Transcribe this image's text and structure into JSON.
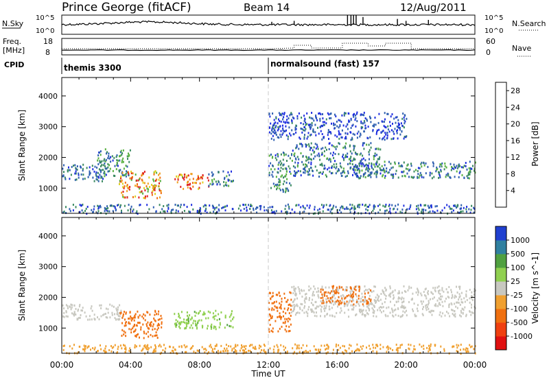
{
  "header": {
    "station": "Prince George (fitACF)",
    "beam": "Beam 14",
    "date": "12/Aug/2011"
  },
  "sky_panel": {
    "left_label": "N.Sky",
    "left_ticks": [
      "10^5",
      "10^0"
    ],
    "right_ticks": [
      "10^5",
      "10^0"
    ],
    "right_label": "N.Search"
  },
  "freq_panel": {
    "left_label_1": "Freq.",
    "left_label_2": "[MHz]",
    "left_ticks": [
      "18",
      "8"
    ],
    "right_ticks": [
      "60",
      "0"
    ],
    "right_label": "Nave"
  },
  "cpid": {
    "label": "CPID",
    "programs": [
      "themis 3300",
      "normalsound (fast) 157"
    ]
  },
  "colors": {
    "power": [
      "#1e2ee0",
      "#2e5fb0",
      "#3a8a60",
      "#58b040",
      "#e0d020",
      "#f0a020",
      "#f07010",
      "#e02020"
    ],
    "velocity": [
      "#e01010",
      "#f04010",
      "#f07010",
      "#f0a030",
      "#c8c8c0",
      "#90d050",
      "#50a040",
      "#3080a0",
      "#2040d0"
    ],
    "grid_dash": "#c8c8c8"
  },
  "chart_data": [
    {
      "type": "heatmap",
      "name": "power",
      "ylabel": "Slant Range [km]",
      "y_ticks": [
        "1000",
        "2000",
        "3000",
        "4000"
      ],
      "ylim": [
        180,
        4600
      ],
      "colorbar_label": "Power [dB]",
      "colorbar_ticks": [
        "4",
        "8",
        "12",
        "16",
        "20",
        "24",
        "28"
      ],
      "colorbar_range": [
        0,
        30
      ],
      "regions": [
        {
          "t": [
            0.0,
            2.5
          ],
          "r": [
            1250,
            1800
          ],
          "v": 6
        },
        {
          "t": [
            2.0,
            4.0
          ],
          "r": [
            1400,
            2300
          ],
          "v": 9
        },
        {
          "t": [
            3.3,
            5.8
          ],
          "r": [
            700,
            1600
          ],
          "v": 22
        },
        {
          "t": [
            6.5,
            8.5
          ],
          "r": [
            1000,
            1500
          ],
          "v": 24
        },
        {
          "t": [
            8.5,
            10.0
          ],
          "r": [
            1100,
            1600
          ],
          "v": 8
        },
        {
          "t": [
            0.0,
            24.0
          ],
          "r": [
            200,
            500
          ],
          "v": 6
        },
        {
          "t": [
            12.0,
            13.3
          ],
          "r": [
            900,
            2200
          ],
          "v": 9
        },
        {
          "t": [
            13.3,
            18.5
          ],
          "r": [
            1400,
            2500
          ],
          "v": 7
        },
        {
          "t": [
            17.0,
            24.0
          ],
          "r": [
            1350,
            1900
          ],
          "v": 8
        },
        {
          "t": [
            12.0,
            20.0
          ],
          "r": [
            2600,
            3500
          ],
          "v": 4
        }
      ]
    },
    {
      "type": "heatmap",
      "name": "velocity",
      "ylabel": "Slant Range [km]",
      "y_ticks": [
        "1000",
        "2000",
        "3000",
        "4000"
      ],
      "ylim": [
        180,
        4600
      ],
      "colorbar_label": "Velocity [m s^-1]",
      "colorbar_ticks": [
        "1000",
        "500",
        "100",
        "25",
        "-25",
        "-100",
        "-500",
        "-1000"
      ],
      "regions": [
        {
          "t": [
            0.0,
            3.5
          ],
          "r": [
            1300,
            1800
          ],
          "v": 0
        },
        {
          "t": [
            3.3,
            5.8
          ],
          "r": [
            700,
            1600
          ],
          "v": -300
        },
        {
          "t": [
            6.5,
            10.0
          ],
          "r": [
            1000,
            1600
          ],
          "v": 80
        },
        {
          "t": [
            0.0,
            24.0
          ],
          "r": [
            200,
            500
          ],
          "v": -50
        },
        {
          "t": [
            12.0,
            13.3
          ],
          "r": [
            900,
            2200
          ],
          "v": -200
        },
        {
          "t": [
            13.3,
            24.0
          ],
          "r": [
            1400,
            2400
          ],
          "v": 0
        },
        {
          "t": [
            15.0,
            18.0
          ],
          "r": [
            1800,
            2400
          ],
          "v": -300
        }
      ]
    }
  ],
  "x_axis": {
    "ticks": [
      "00:00",
      "04:00",
      "08:00",
      "12:00",
      "16:00",
      "20:00",
      "00:00"
    ],
    "label": "Time UT",
    "range_hours": [
      0,
      24
    ]
  }
}
